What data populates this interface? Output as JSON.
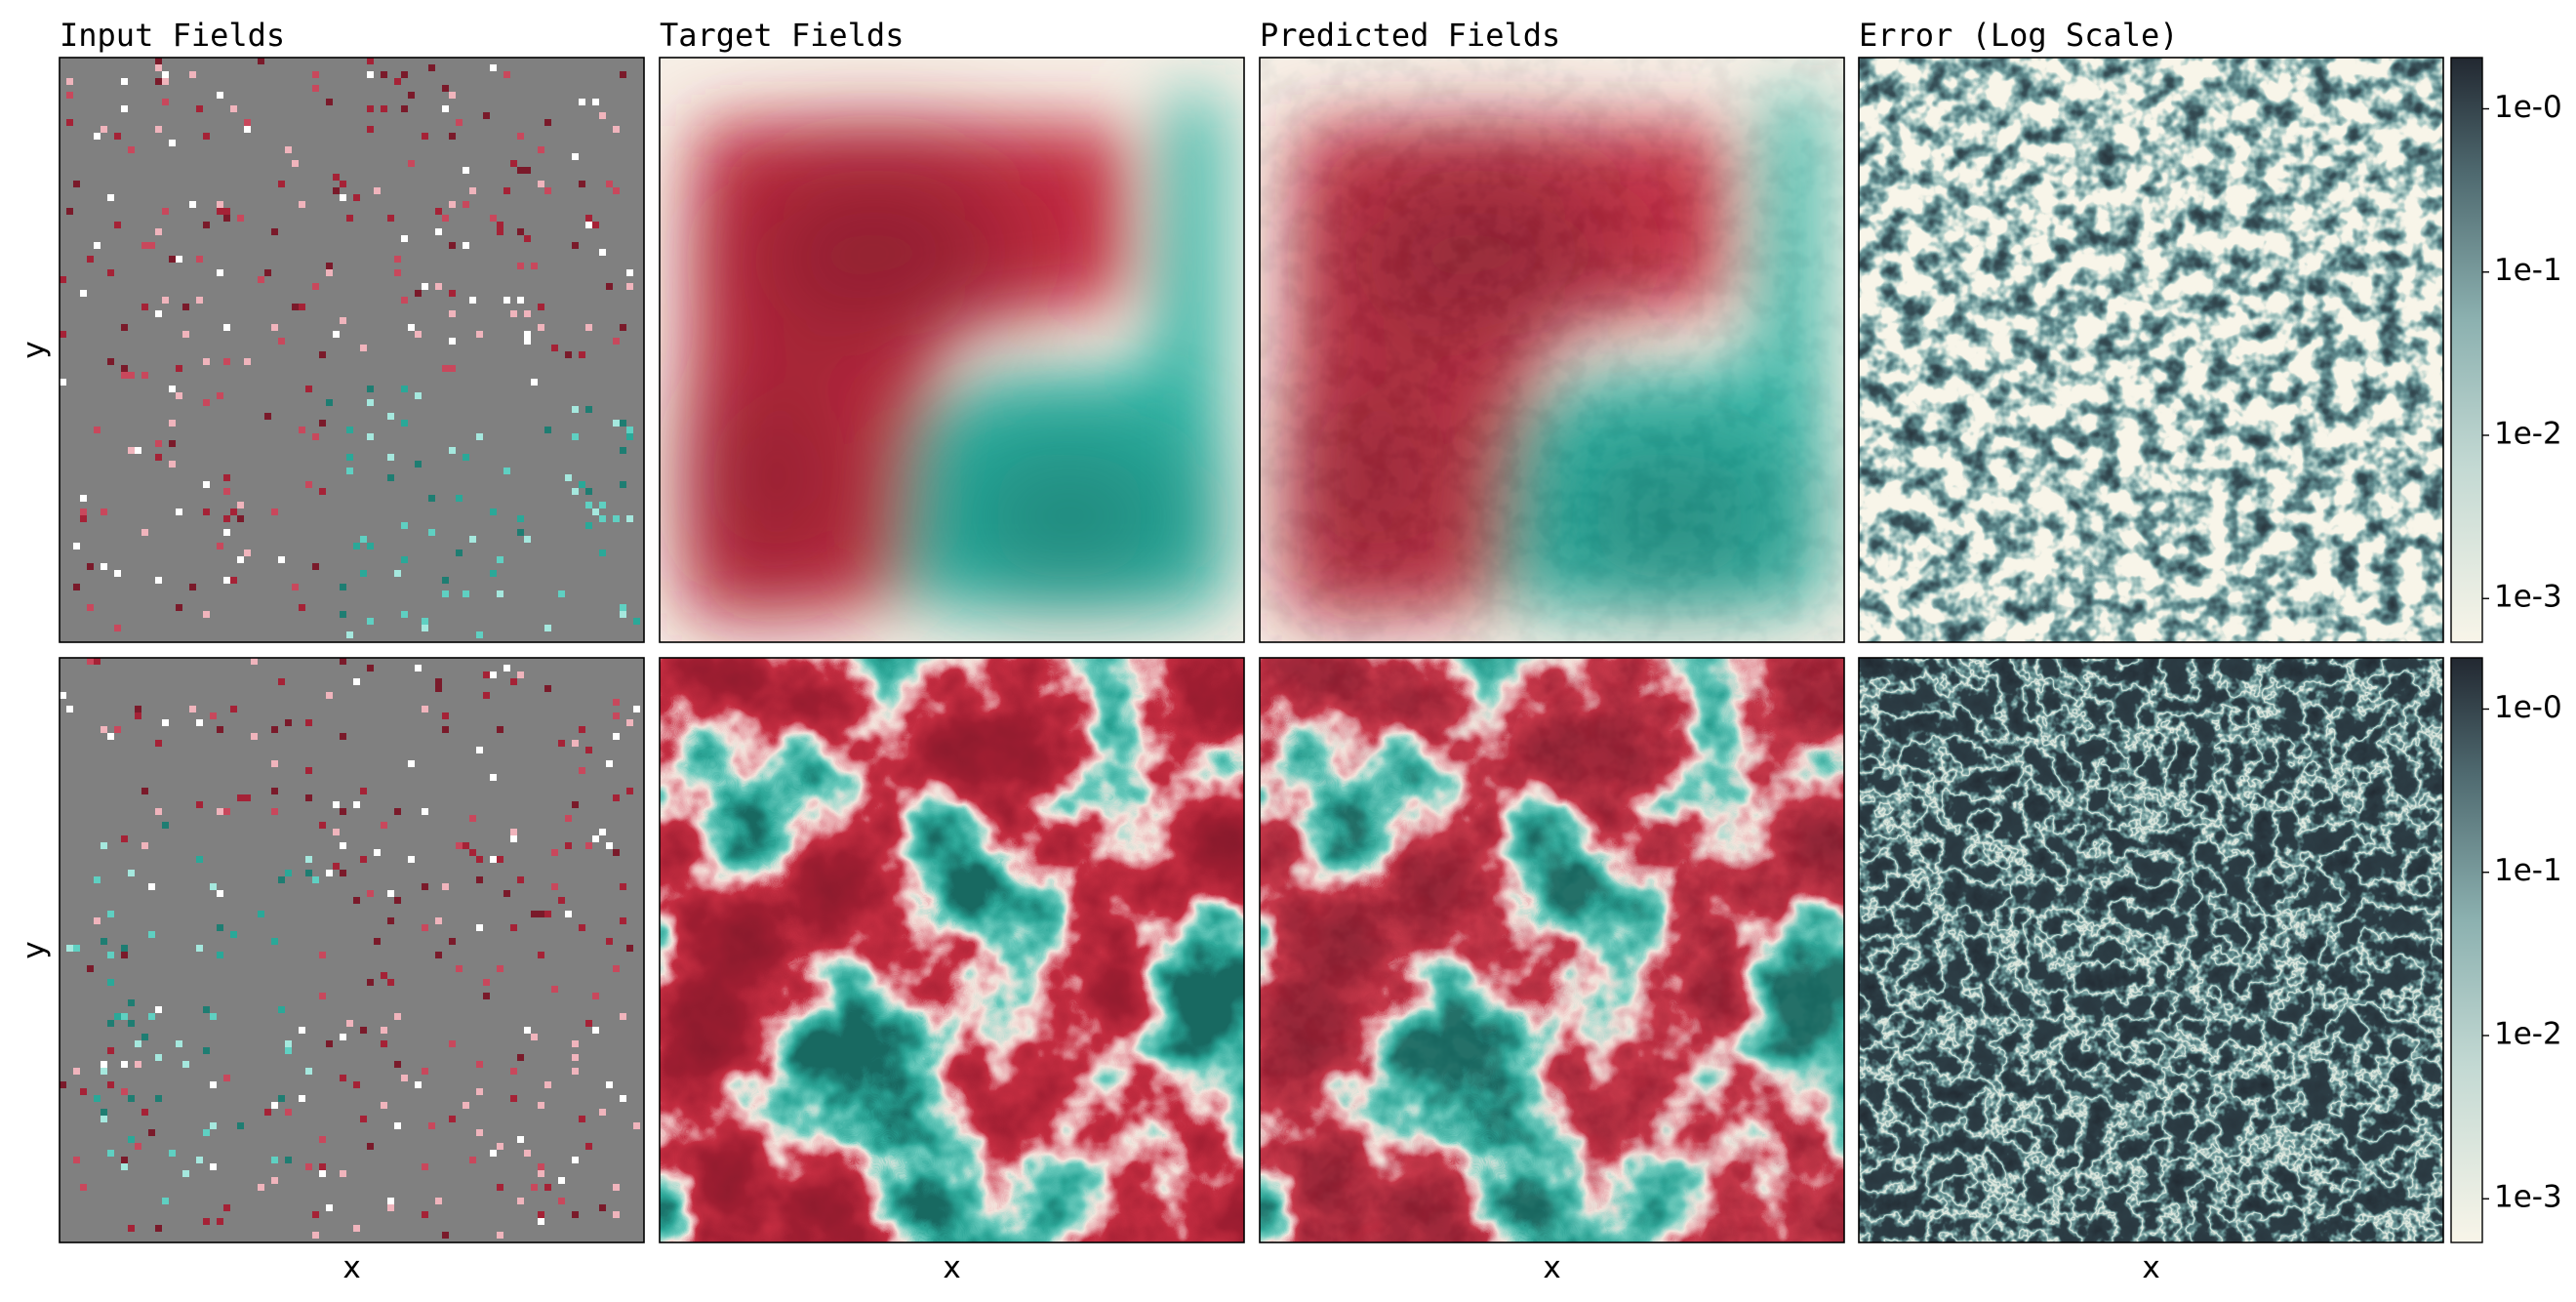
{
  "chart_data": [
    {
      "type": "sparse",
      "title": "Input Fields",
      "ylabel": "y"
    },
    {
      "type": "field",
      "title": "Target Fields"
    },
    {
      "type": "field",
      "title": "Predicted Fields"
    },
    {
      "type": "error",
      "title": "Error (Log Scale)",
      "colorbar": {
        "log": true,
        "ylim": [
          0.00054,
          2.06
        ],
        "yticks": [
          {
            "value": 1,
            "label": "1e-0"
          },
          {
            "value": 0.1,
            "label": "1e-1"
          },
          {
            "value": 0.01,
            "label": "1e-2"
          },
          {
            "value": 0.001,
            "label": "1e-3"
          }
        ]
      }
    },
    {
      "type": "sparse",
      "ylabel": "y",
      "xlabel": "x"
    },
    {
      "type": "field",
      "xlabel": "x"
    },
    {
      "type": "field",
      "xlabel": "x"
    },
    {
      "type": "error",
      "xlabel": "x",
      "colorbar": {
        "log": true,
        "ylim": [
          0.00054,
          2.06
        ],
        "yticks": [
          {
            "value": 1,
            "label": "1e-0"
          },
          {
            "value": 0.1,
            "label": "1e-1"
          },
          {
            "value": 0.01,
            "label": "1e-2"
          },
          {
            "value": 0.001,
            "label": "1e-3"
          }
        ]
      }
    }
  ]
}
